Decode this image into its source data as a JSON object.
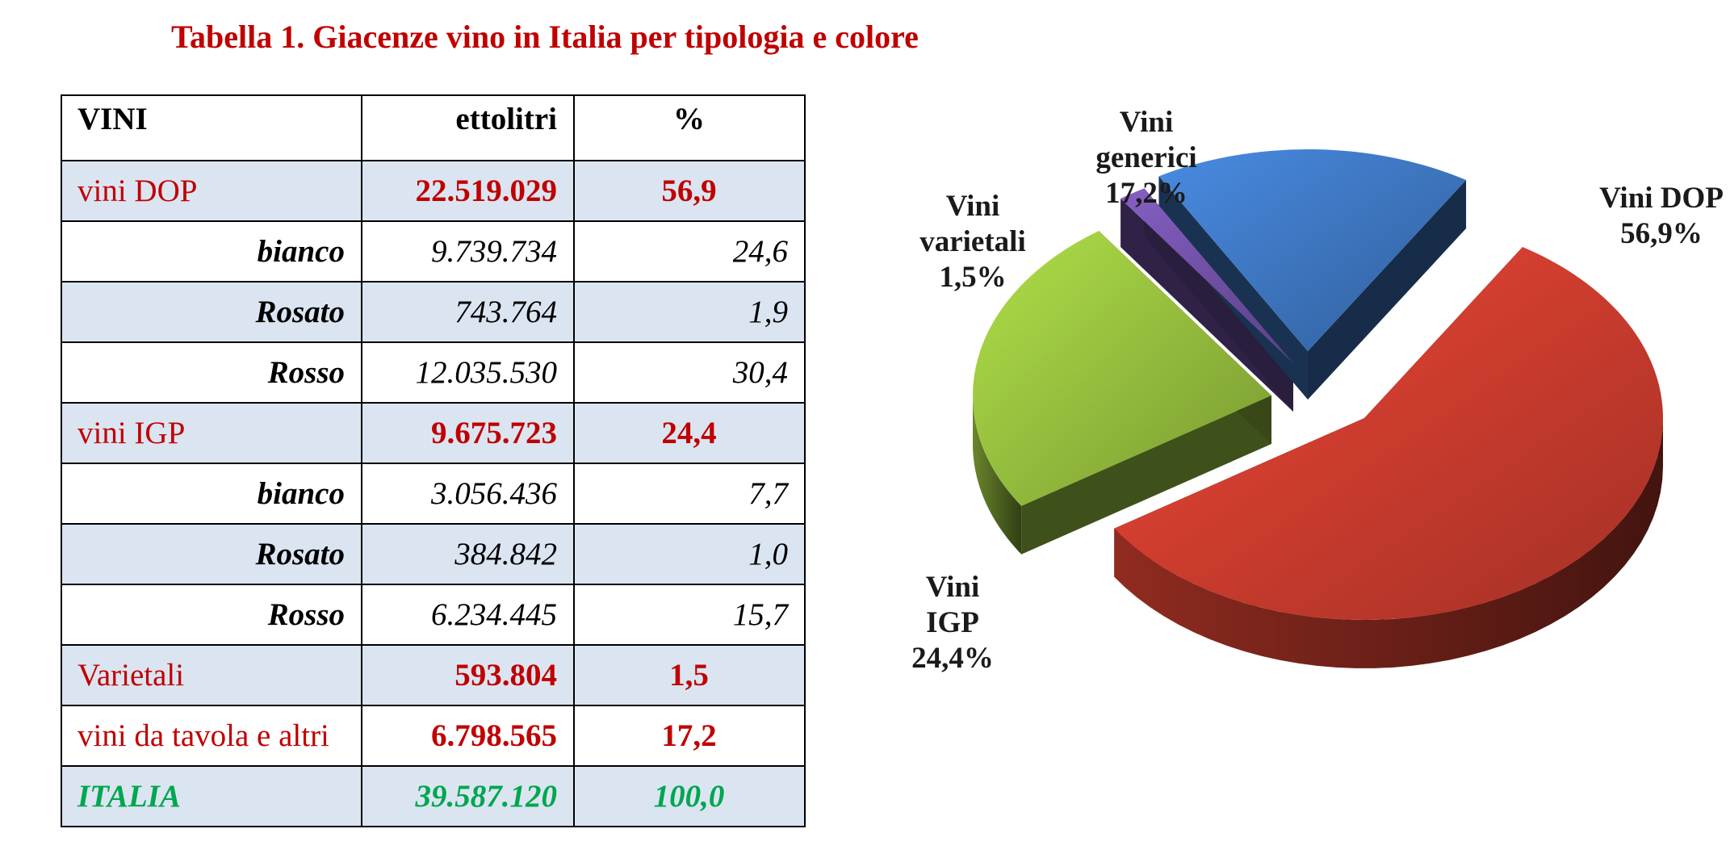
{
  "title": "Tabella 1. Giacenze vino in Italia per tipologia e colore",
  "table": {
    "headers": [
      "VINI",
      "ettolitri",
      "%"
    ],
    "rows": [
      {
        "label": "vini DOP",
        "value": "22.519.029",
        "pct": "56,9",
        "kind": "main"
      },
      {
        "label": "bianco",
        "value": "9.739.734",
        "pct": "24,6",
        "kind": "sub"
      },
      {
        "label": "Rosato",
        "value": "743.764",
        "pct": "1,9",
        "kind": "sub"
      },
      {
        "label": "Rosso",
        "value": "12.035.530",
        "pct": "30,4",
        "kind": "sub"
      },
      {
        "label": "vini IGP",
        "value": "9.675.723",
        "pct": "24,4",
        "kind": "main"
      },
      {
        "label": "bianco",
        "value": "3.056.436",
        "pct": "7,7",
        "kind": "sub"
      },
      {
        "label": "Rosato",
        "value": "384.842",
        "pct": "1,0",
        "kind": "sub"
      },
      {
        "label": "Rosso",
        "value": "6.234.445",
        "pct": "15,7",
        "kind": "sub"
      },
      {
        "label": "Varietali",
        "value": "593.804",
        "pct": "1,5",
        "kind": "main"
      },
      {
        "label": "vini da tavola e altri",
        "value": "6.798.565",
        "pct": "17,2",
        "kind": "main"
      },
      {
        "label": "ITALIA",
        "value": "39.587.120",
        "pct": "100,0",
        "kind": "total"
      }
    ]
  },
  "chart_data": {
    "type": "pie",
    "style": "3d-exploded",
    "slices": [
      {
        "label": "Vini DOP",
        "value": 56.9,
        "display": "56,9%",
        "color": "#c0392b"
      },
      {
        "label": "Vini IGP",
        "value": 24.4,
        "display": "24,4%",
        "color": "#8db33a"
      },
      {
        "label": "Vini varietali",
        "value": 1.5,
        "display": "1,5%",
        "color": "#6a4c9c"
      },
      {
        "label": "Vini generici",
        "value": 17.2,
        "display": "17,2%",
        "color": "#3a6fb5"
      }
    ],
    "colors": {
      "table_title": "#c00000",
      "table_main": "#c00000",
      "table_total": "#00a650",
      "table_shade": "#dbe5f1"
    }
  }
}
